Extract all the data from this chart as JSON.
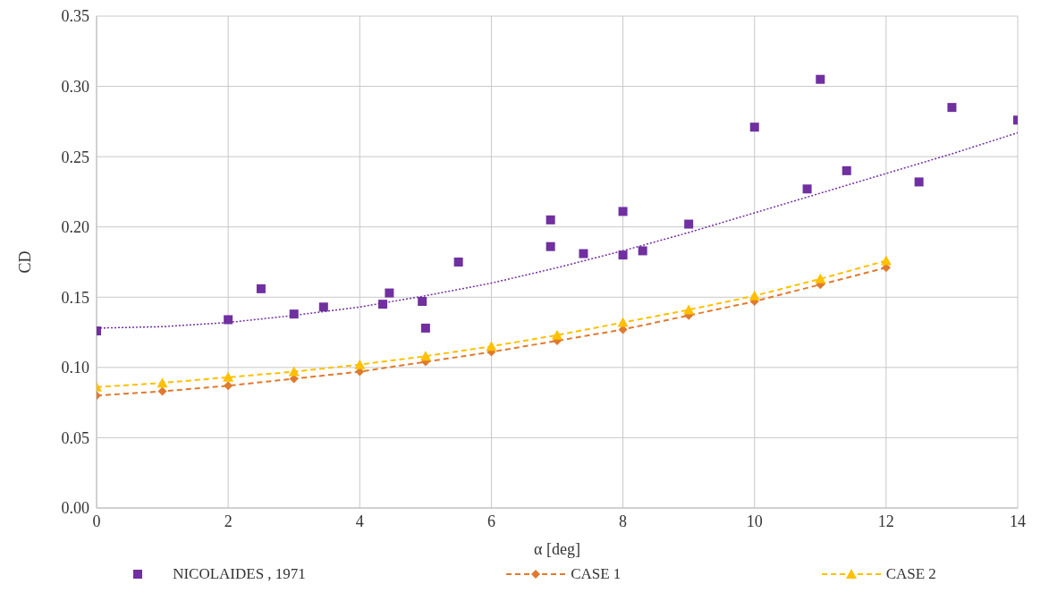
{
  "chart_data": {
    "type": "scatter",
    "xlabel": "α     [deg]",
    "ylabel": "CD",
    "xlim": [
      0,
      14
    ],
    "xticks": [
      0,
      2,
      4,
      6,
      8,
      10,
      12,
      14
    ],
    "ylim": [
      0,
      0.35
    ],
    "yticks": [
      {
        "value": 0,
        "label": "0.00"
      },
      {
        "value": 0.05,
        "label": "0.05"
      },
      {
        "value": 0.1,
        "label": "0.10"
      },
      {
        "value": 0.15,
        "label": "0.15"
      },
      {
        "value": 0.2,
        "label": "0.20"
      },
      {
        "value": 0.25,
        "label": "0.25"
      },
      {
        "value": 0.3,
        "label": "0.30"
      },
      {
        "value": 0.35,
        "label": "0.35"
      }
    ],
    "grid": true,
    "legend": "bottom",
    "series": [
      {
        "name": "NICOLAIDES , 1971",
        "color": "#7030a0",
        "marker": "square",
        "x": [
          0,
          2,
          2.5,
          3,
          3.45,
          4.35,
          4.45,
          4.95,
          5,
          5.5,
          6.9,
          6.9,
          7.4,
          8,
          8,
          8.3,
          9,
          10,
          10.8,
          11,
          11.4,
          12.5,
          13,
          14
        ],
        "values": [
          0.126,
          0.134,
          0.156,
          0.138,
          0.143,
          0.145,
          0.153,
          0.147,
          0.128,
          0.175,
          0.205,
          0.186,
          0.181,
          0.211,
          0.18,
          0.183,
          0.202,
          0.271,
          0.227,
          0.305,
          0.24,
          0.232,
          0.285,
          0.276
        ]
      },
      {
        "type": "line",
        "color": "#7030a0",
        "marker": "none",
        "line_style": "dotted",
        "x": [
          0,
          1,
          2,
          3,
          4,
          5,
          6,
          7,
          8,
          9,
          10,
          11,
          12,
          13,
          14
        ],
        "values": [
          0.128,
          0.129,
          0.132,
          0.137,
          0.143,
          0.151,
          0.16,
          0.171,
          0.183,
          0.196,
          0.21,
          0.224,
          0.238,
          0.252,
          0.267
        ]
      },
      {
        "name": "CASE 1",
        "type": "line",
        "color": "#e07a2e",
        "marker": "diamond",
        "line_style": "dashed",
        "x": [
          0,
          1,
          2,
          3,
          4,
          5,
          6,
          7,
          8,
          9,
          10,
          11,
          12
        ],
        "values": [
          0.08,
          0.083,
          0.087,
          0.092,
          0.097,
          0.104,
          0.111,
          0.119,
          0.127,
          0.137,
          0.147,
          0.159,
          0.171
        ]
      },
      {
        "name": "CASE 2",
        "type": "line",
        "color": "#ffc000",
        "marker": "triangle",
        "line_style": "dashed",
        "x": [
          0,
          1,
          2,
          3,
          4,
          5,
          6,
          7,
          8,
          9,
          10,
          11,
          12
        ],
        "values": [
          0.086,
          0.089,
          0.093,
          0.097,
          0.102,
          0.108,
          0.115,
          0.123,
          0.132,
          0.141,
          0.151,
          0.163,
          0.176
        ]
      }
    ]
  }
}
